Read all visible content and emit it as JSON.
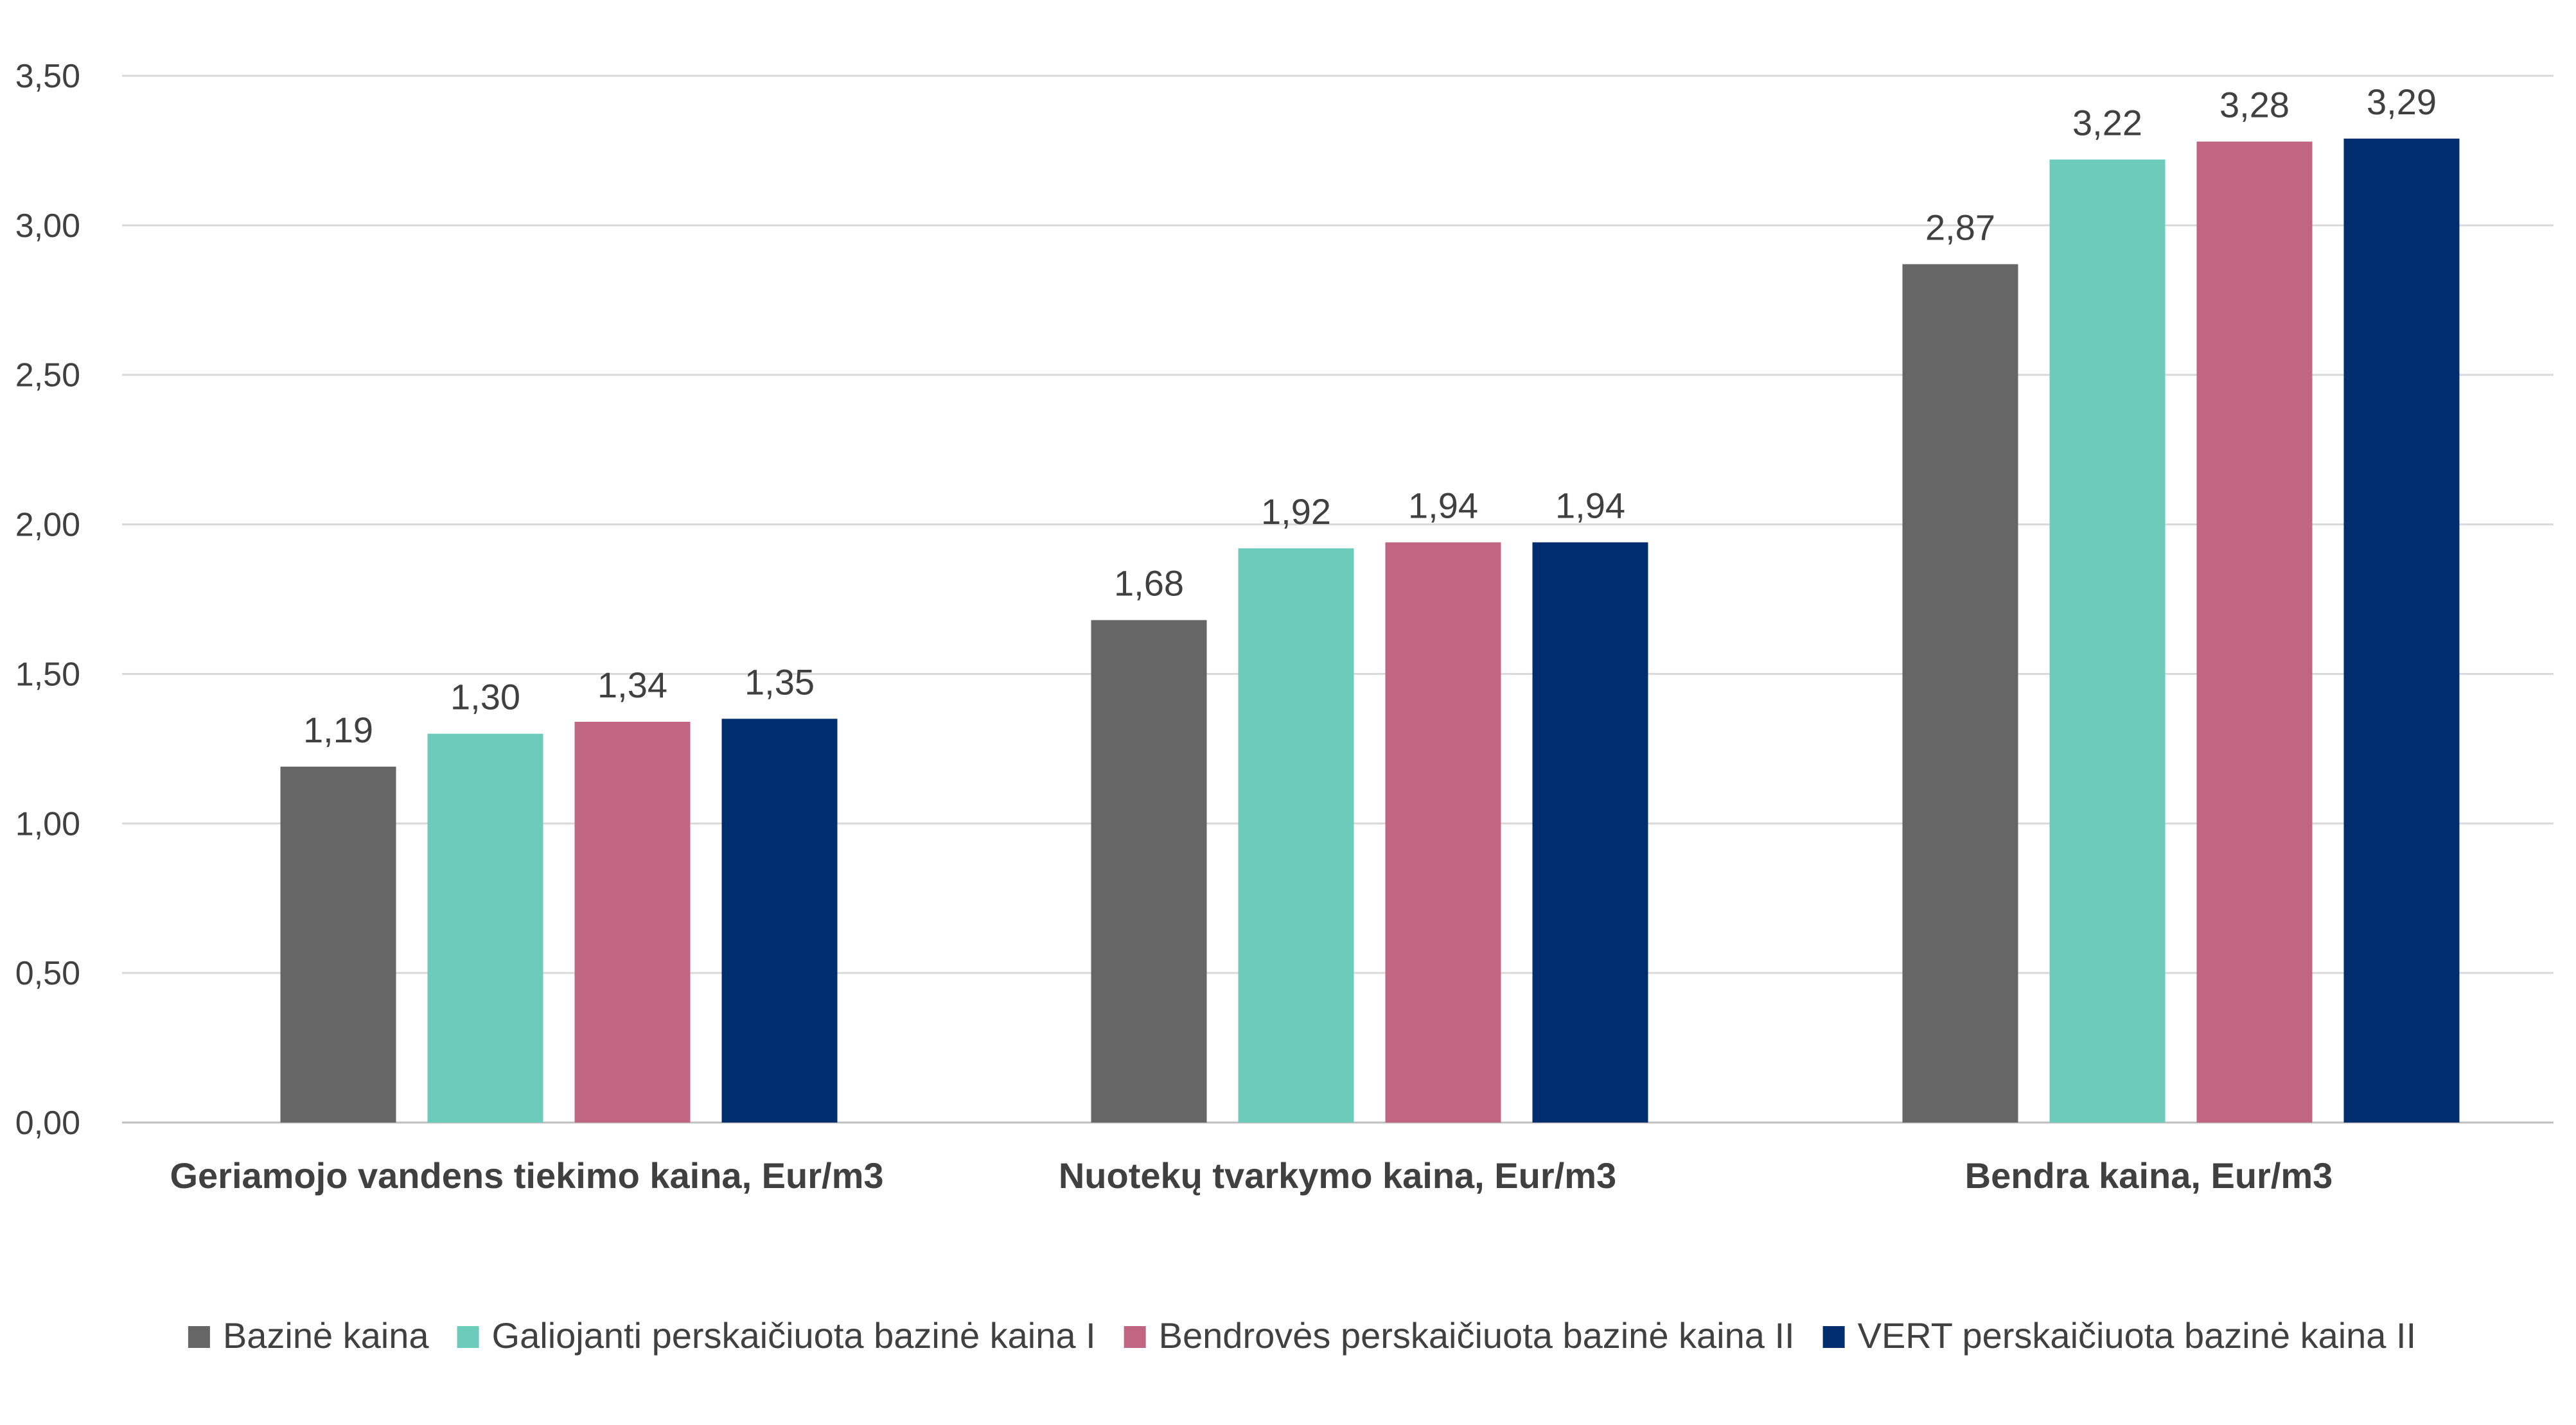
{
  "chart_data": {
    "type": "bar",
    "title": "",
    "xlabel": "",
    "ylabel": "",
    "ylim": [
      0,
      3.5
    ],
    "y_ticks": [
      "0,00",
      "0,50",
      "1,00",
      "1,50",
      "2,00",
      "2,50",
      "3,00",
      "3,50"
    ],
    "y_tick_values": [
      0,
      0.5,
      1.0,
      1.5,
      2.0,
      2.5,
      3.0,
      3.5
    ],
    "grid": true,
    "legend_position": "bottom",
    "categories": [
      "Geriamojo vandens tiekimo kaina, Eur/m3",
      "Nuotekų tvarkymo kaina, Eur/m3",
      "Bendra kaina, Eur/m3"
    ],
    "series": [
      {
        "name": "Bazinė kaina",
        "color": "#666666",
        "values": [
          1.19,
          1.68,
          2.87
        ],
        "labels": [
          "1,19",
          "1,68",
          "2,87"
        ]
      },
      {
        "name": "Galiojanti perskaičiuota bazinė kaina I",
        "color": "#6ccbbb",
        "values": [
          1.3,
          1.92,
          3.22
        ],
        "labels": [
          "1,30",
          "1,92",
          "3,22"
        ]
      },
      {
        "name": "Bendrovės perskaičiuota bazinė kaina II",
        "color": "#c06582",
        "values": [
          1.34,
          1.94,
          3.28
        ],
        "labels": [
          "1,34",
          "1,94",
          "3,28"
        ]
      },
      {
        "name": "VERT perskaičiuota bazinė kaina II",
        "color": "#002d6e",
        "values": [
          1.35,
          1.94,
          3.29
        ],
        "labels": [
          "1,35",
          "1,94",
          "3,29"
        ]
      }
    ]
  }
}
